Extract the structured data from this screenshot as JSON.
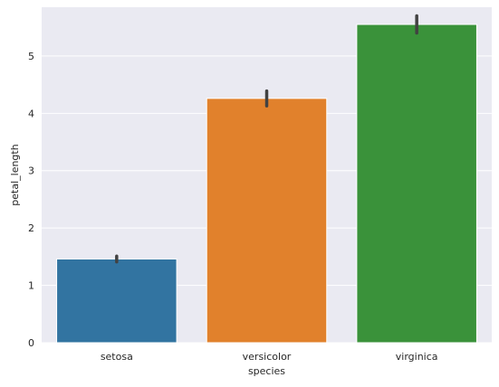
{
  "chart_data": {
    "type": "bar",
    "title": "",
    "xlabel": "species",
    "ylabel": "petal_length",
    "categories": [
      "setosa",
      "versicolor",
      "virginica"
    ],
    "values": [
      1.46,
      4.26,
      5.55
    ],
    "error_bars": [
      {
        "low": 1.41,
        "high": 1.51
      },
      {
        "low": 4.13,
        "high": 4.39
      },
      {
        "low": 5.4,
        "high": 5.7
      }
    ],
    "colors": [
      "#3274a1",
      "#e1812c",
      "#3a923a"
    ],
    "ylim": [
      0,
      5.85
    ],
    "yticks": [
      0,
      1,
      2,
      3,
      4,
      5
    ],
    "grid": true,
    "legend": "none",
    "style": {
      "background": "#eaeaf2",
      "grid_color": "#ffffff",
      "errorbar_color": "#424242"
    }
  }
}
